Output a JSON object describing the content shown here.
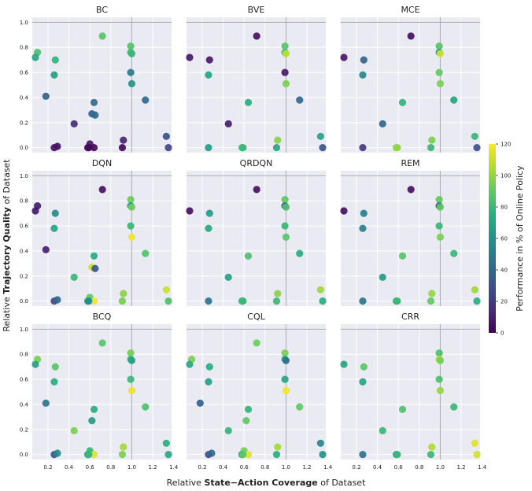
{
  "labels": {
    "xlabel_pre": "Relative ",
    "xlabel_bold": "State−Action Coverage",
    "xlabel_post": " of Dataset",
    "ylabel_pre": "Relative ",
    "ylabel_bold": "Trajectory Quality",
    "ylabel_post": " of Dataset",
    "cbar_label": "Performance in % of Online Policy"
  },
  "chart_data": {
    "type": "scatter",
    "xlim": [
      0.05,
      1.38
    ],
    "ylim": [
      -0.04,
      1.04
    ],
    "xticks": [
      "0.2",
      "0.4",
      "0.6",
      "0.8",
      "1.0",
      "1.2",
      "1.4"
    ],
    "xtick_values": [
      0.2,
      0.4,
      0.6,
      0.8,
      1.0,
      1.2,
      1.4
    ],
    "yticks": [
      "0.0",
      "0.2",
      "0.4",
      "0.6",
      "0.8",
      "1.0"
    ],
    "ytick_values": [
      0.0,
      0.2,
      0.4,
      0.6,
      0.8,
      1.0
    ],
    "reference_lines": {
      "x": 1.0,
      "y": 1.0
    },
    "grid": true,
    "colormap": "viridis",
    "color_range": [
      0,
      120
    ],
    "colorbar_ticks": [
      "0",
      "20",
      "40",
      "60",
      "80",
      "100",
      "120"
    ],
    "colorbar_tick_values": [
      0,
      20,
      40,
      60,
      80,
      100,
      120
    ],
    "dataset_x": [
      0.72,
      0.99,
      0.1,
      0.08,
      0.27,
      0.26,
      0.18,
      0.99,
      1.0,
      0.99,
      1.0,
      1.13,
      0.64,
      0.62,
      0.65,
      0.45,
      0.92,
      0.6,
      0.58,
      0.26,
      0.29,
      0.64,
      0.59,
      0.91,
      1.33,
      1.35
    ],
    "dataset_y": [
      0.89,
      0.81,
      0.76,
      0.72,
      0.7,
      0.58,
      0.41,
      0.76,
      0.75,
      0.6,
      0.51,
      0.38,
      0.36,
      0.27,
      0.26,
      0.19,
      0.06,
      0.03,
      0.0,
      0.0,
      0.01,
      0.0,
      0.0,
      0.0,
      0.09,
      0.0
    ],
    "panels": [
      {
        "title": "BC",
        "values": [
          88,
          86,
          85,
          72,
          78,
          67,
          38,
          82,
          79,
          50,
          62,
          40,
          42,
          36,
          40,
          15,
          12,
          8,
          5,
          5,
          5,
          3,
          3,
          3,
          30,
          25
        ]
      },
      {
        "title": "BVE",
        "values": [
          5,
          88,
          null,
          8,
          8,
          70,
          null,
          80,
          108,
          8,
          95,
          40,
          75,
          null,
          null,
          10,
          97,
          null,
          85,
          65,
          null,
          null,
          80,
          70,
          70,
          32
        ]
      },
      {
        "title": "MCE",
        "values": [
          5,
          88,
          null,
          8,
          38,
          55,
          null,
          65,
          112,
          90,
          95,
          70,
          78,
          null,
          null,
          40,
          95,
          null,
          98,
          20,
          null,
          null,
          100,
          80,
          80,
          30
        ]
      },
      {
        "title": "DQN",
        "values": [
          5,
          92,
          10,
          8,
          58,
          70,
          10,
          60,
          94,
          80,
          118,
          86,
          75,
          110,
          32,
          80,
          98,
          90,
          70,
          25,
          40,
          118,
          58,
          94,
          110,
          85
        ]
      },
      {
        "title": "QRDQN",
        "values": [
          5,
          90,
          null,
          5,
          65,
          72,
          null,
          38,
          85,
          80,
          88,
          75,
          85,
          null,
          null,
          68,
          98,
          null,
          78,
          45,
          null,
          null,
          80,
          80,
          102,
          75
        ]
      },
      {
        "title": "REM",
        "values": [
          5,
          90,
          null,
          5,
          52,
          52,
          null,
          38,
          90,
          80,
          95,
          80,
          88,
          null,
          null,
          65,
          100,
          null,
          78,
          45,
          null,
          null,
          80,
          90,
          102,
          75
        ]
      },
      {
        "title": "BCQ",
        "values": [
          88,
          94,
          95,
          68,
          88,
          75,
          45,
          80,
          68,
          80,
          117,
          85,
          75,
          65,
          null,
          95,
          103,
          80,
          65,
          30,
          58,
          115,
          80,
          95,
          75,
          72
        ]
      },
      {
        "title": "CQL",
        "values": [
          92,
          95,
          95,
          72,
          75,
          68,
          38,
          70,
          45,
          70,
          118,
          90,
          78,
          90,
          null,
          78,
          103,
          94,
          60,
          30,
          40,
          115,
          90,
          75,
          55,
          60
        ]
      },
      {
        "title": "CRR",
        "values": [
          null,
          85,
          null,
          70,
          88,
          70,
          null,
          105,
          94,
          85,
          100,
          80,
          85,
          null,
          null,
          80,
          105,
          null,
          70,
          45,
          null,
          null,
          80,
          80,
          115,
          112
        ]
      }
    ]
  }
}
